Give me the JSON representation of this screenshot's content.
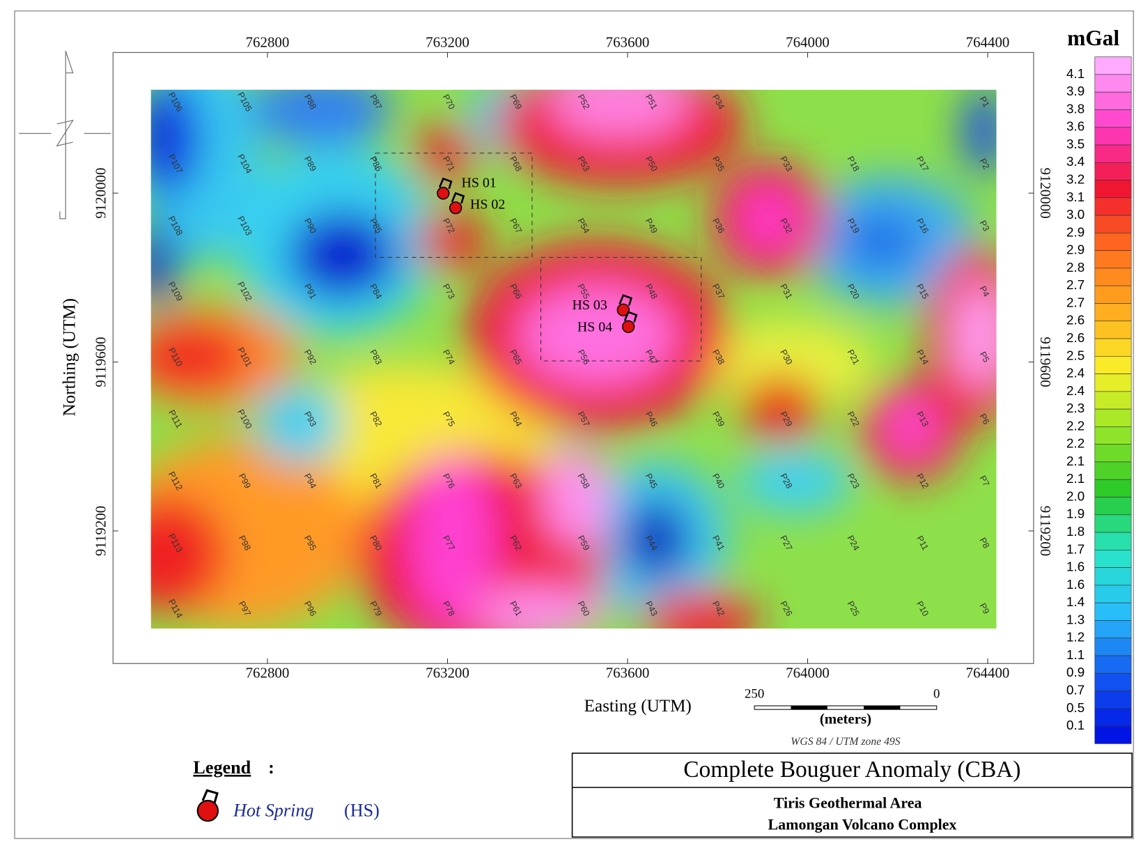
{
  "unit_label": "mGal",
  "axes": {
    "x_title": "Easting (UTM)",
    "y_title": "Northing (UTM)",
    "xlim": [
      762457,
      764502
    ],
    "ylim": [
      9118886,
      9120333
    ],
    "xticks": [
      762800,
      763200,
      763600,
      764000,
      764400
    ],
    "yticks": [
      9119200,
      9119600,
      9120000
    ]
  },
  "stations": [
    [
      "P106",
      "P107",
      "P108",
      "P109",
      "P110",
      "P111",
      "P112",
      "P113",
      "P114"
    ],
    [
      "P105",
      "P104",
      "P103",
      "P102",
      "P101",
      "P100",
      "P99",
      "P98",
      "P97"
    ],
    [
      "P88",
      "P89",
      "P90",
      "P91",
      "P92",
      "P93",
      "P94",
      "P95",
      "P96"
    ],
    [
      "P87",
      "P86",
      "P85",
      "P84",
      "P83",
      "P82",
      "P81",
      "P80",
      "P79"
    ],
    [
      "P70",
      "P71",
      "P72",
      "P73",
      "P74",
      "P75",
      "P76",
      "P77",
      "P78"
    ],
    [
      "P69",
      "P68",
      "P67",
      "P66",
      "P65",
      "P64",
      "P63",
      "P62",
      "P61"
    ],
    [
      "P52",
      "P53",
      "P54",
      "P55",
      "P56",
      "P57",
      "P58",
      "P59",
      "P60"
    ],
    [
      "P51",
      "P50",
      "P49",
      "P48",
      "P47",
      "P46",
      "P45",
      "P44",
      "P43"
    ],
    [
      "P34",
      "P35",
      "P36",
      "P37",
      "P38",
      "P39",
      "P40",
      "P41",
      "P42"
    ],
    [
      null,
      "P33",
      "P32",
      "P31",
      "P30",
      "P29",
      "P28",
      "P27",
      "P26"
    ],
    [
      null,
      "P18",
      "P19",
      "P20",
      "P21",
      "P22",
      "P23",
      "P24",
      "P25"
    ],
    [
      null,
      "P17",
      "P16",
      "P15",
      "P14",
      "P13",
      "P12",
      "P11",
      "P10"
    ],
    [
      "P1",
      "P2",
      "P3",
      "P4",
      "P5",
      "P6",
      "P7",
      "P8",
      "P9"
    ]
  ],
  "hot_springs": [
    "HS 01",
    "HS 02",
    "HS 03",
    "HS 04"
  ],
  "colorbar_labels": [
    "4.1",
    "3.9",
    "3.8",
    "3.6",
    "3.5",
    "3.4",
    "3.2",
    "3.1",
    "3.0",
    "2.9",
    "2.9",
    "2.8",
    "2.7",
    "2.7",
    "2.6",
    "2.6",
    "2.5",
    "2.4",
    "2.4",
    "2.3",
    "2.2",
    "2.2",
    "2.1",
    "2.1",
    "2.0",
    "1.9",
    "1.8",
    "1.7",
    "1.6",
    "1.6",
    "1.4",
    "1.3",
    "1.2",
    "1.1",
    "0.9",
    "0.7",
    "0.5",
    "0.1"
  ],
  "scale_bar": {
    "left": "250",
    "right": "0",
    "unit": "(meters)",
    "projection": "WGS 84 / UTM zone 49S"
  },
  "legend": {
    "title": "Legend",
    "colon": ":",
    "symbol_label": "Hot Spring",
    "abbr": "(HS)"
  },
  "title_box": {
    "title": "Complete Bouguer Anomaly (CBA)",
    "lines": [
      "Tiris Geothermal Area",
      "Lamongan Volcano Complex"
    ]
  }
}
